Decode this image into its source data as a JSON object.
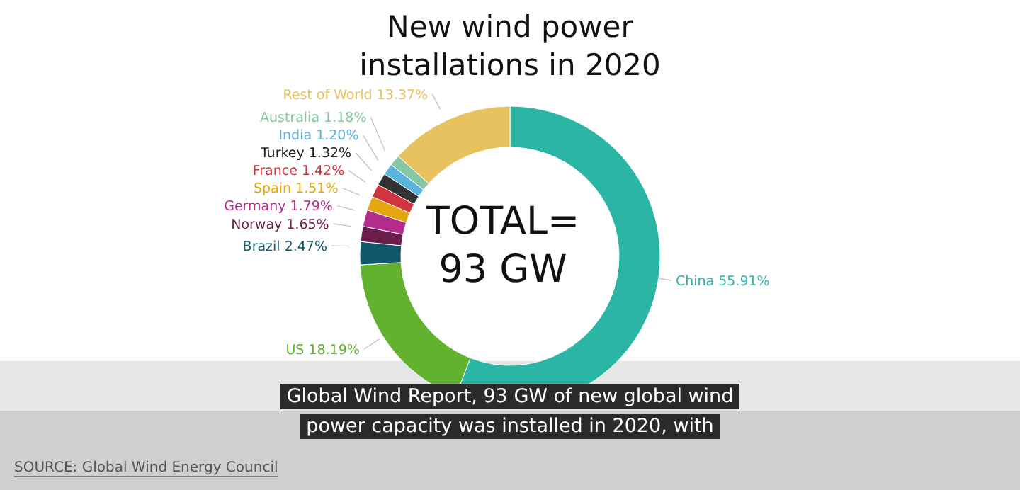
{
  "chart_data": {
    "type": "donut",
    "title": "New wind power installations in 2020",
    "categories": [
      "China",
      "US",
      "Brazil",
      "Norway",
      "Germany",
      "Spain",
      "France",
      "Turkey",
      "India",
      "Australia",
      "Rest of World"
    ],
    "values": [
      55.91,
      18.19,
      2.47,
      1.65,
      1.79,
      1.51,
      1.42,
      1.32,
      1.2,
      1.18,
      13.37
    ],
    "value_labels": [
      "55.91%",
      "18.19%",
      "2.47%",
      "1.65%",
      "1.79%",
      "1.51%",
      "1.42%",
      "1.32%",
      "1.20%",
      "1.18%",
      "13.37%"
    ],
    "colors": [
      "#2bb5a5",
      "#63b22f",
      "#10586a",
      "#6b1e4a",
      "#b42c8c",
      "#e4a712",
      "#d1343f",
      "#333333",
      "#5ab4dc",
      "#86c7a5",
      "#e8c25f"
    ],
    "annotations": [
      "TOTAL=\n93 GW",
      "Global Wind Report, 93 GW of new global wind power capacity was installed in 2020, with",
      "SOURCE: Global Wind Energy Council"
    ]
  }
}
